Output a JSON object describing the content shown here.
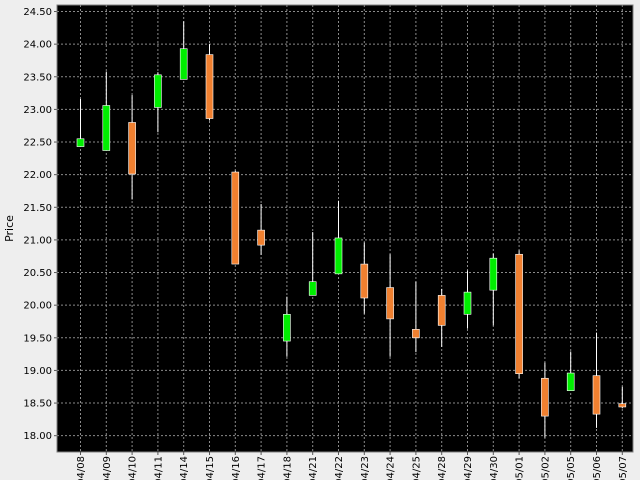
{
  "chart_data": {
    "type": "candlestick",
    "title": "",
    "xlabel": "",
    "ylabel": "Price",
    "ylim": [
      17.75,
      24.6
    ],
    "y_ticks": [
      "18.00",
      "18.50",
      "19.00",
      "19.50",
      "20.00",
      "20.50",
      "21.00",
      "21.50",
      "22.00",
      "22.50",
      "23.00",
      "23.50",
      "24.00",
      "24.50"
    ],
    "grid": true,
    "legend": "none",
    "colors": {
      "plot_bg": "#000000",
      "grid": "#8a8a8a",
      "up": "#00ee00",
      "down": "#f08030",
      "wick": "#ffffff",
      "page_bg": "#eeeeee"
    },
    "candles": [
      {
        "date": "04/08",
        "open": 22.43,
        "high": 23.16,
        "low": 22.43,
        "close": 22.55
      },
      {
        "date": "04/09",
        "open": 22.37,
        "high": 23.58,
        "low": 22.37,
        "close": 23.06
      },
      {
        "date": "04/10",
        "open": 22.8,
        "high": 23.22,
        "low": 21.62,
        "close": 22.01
      },
      {
        "date": "04/11",
        "open": 23.03,
        "high": 23.57,
        "low": 22.65,
        "close": 23.53
      },
      {
        "date": "04/14",
        "open": 23.46,
        "high": 24.35,
        "low": 23.46,
        "close": 23.93
      },
      {
        "date": "04/15",
        "open": 23.84,
        "high": 24.0,
        "low": 22.83,
        "close": 22.86
      },
      {
        "date": "04/16",
        "open": 22.04,
        "high": 22.06,
        "low": 20.63,
        "close": 20.63
      },
      {
        "date": "04/17",
        "open": 21.15,
        "high": 21.55,
        "low": 20.77,
        "close": 20.92
      },
      {
        "date": "04/18",
        "open": 19.45,
        "high": 20.13,
        "low": 19.21,
        "close": 19.86
      },
      {
        "date": "04/21",
        "open": 20.15,
        "high": 21.12,
        "low": 20.15,
        "close": 20.36
      },
      {
        "date": "04/22",
        "open": 20.48,
        "high": 21.6,
        "low": 20.48,
        "close": 21.03
      },
      {
        "date": "04/23",
        "open": 20.63,
        "high": 20.96,
        "low": 19.87,
        "close": 20.11
      },
      {
        "date": "04/24",
        "open": 20.27,
        "high": 20.78,
        "low": 19.21,
        "close": 19.79
      },
      {
        "date": "04/25",
        "open": 19.63,
        "high": 20.36,
        "low": 19.28,
        "close": 19.5
      },
      {
        "date": "04/28",
        "open": 20.15,
        "high": 20.25,
        "low": 19.36,
        "close": 19.69
      },
      {
        "date": "04/29",
        "open": 19.86,
        "high": 20.53,
        "low": 19.64,
        "close": 20.2
      },
      {
        "date": "04/30",
        "open": 20.23,
        "high": 20.79,
        "low": 19.69,
        "close": 20.72
      },
      {
        "date": "05/01",
        "open": 20.78,
        "high": 20.84,
        "low": 18.88,
        "close": 18.95
      },
      {
        "date": "05/02",
        "open": 18.88,
        "high": 19.12,
        "low": 17.97,
        "close": 18.3
      },
      {
        "date": "05/05",
        "open": 18.69,
        "high": 19.29,
        "low": 18.69,
        "close": 18.96
      },
      {
        "date": "05/06",
        "open": 18.92,
        "high": 19.58,
        "low": 18.12,
        "close": 18.33
      },
      {
        "date": "05/07",
        "open": 18.49,
        "high": 18.75,
        "low": 18.42,
        "close": 18.44
      }
    ]
  }
}
